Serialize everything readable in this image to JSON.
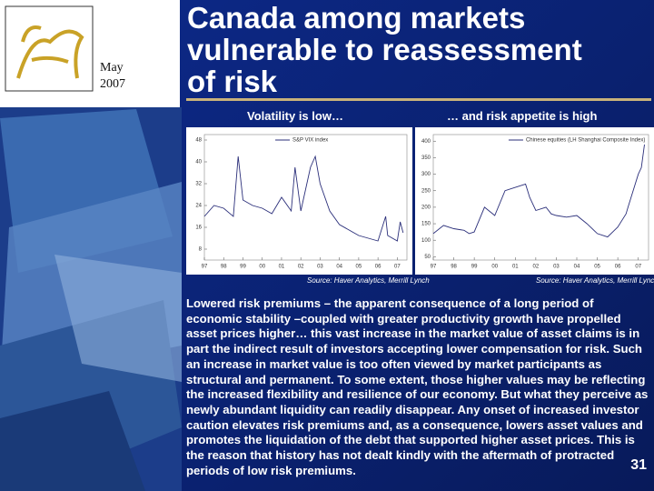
{
  "header": {
    "month": "May",
    "year": "2007",
    "title_lines": [
      "Canada among markets",
      "vulnerable to reassessment",
      "of risk"
    ]
  },
  "panels": [
    {
      "subtitle": "Volatility is low…",
      "source": "Source: Haver Analytics, Merrill Lynch"
    },
    {
      "subtitle": "… and risk appetite is high",
      "source": "Source: Haver Analytics, Merrill Lynch"
    }
  ],
  "chart_data": [
    {
      "type": "line",
      "x": [
        1997,
        1997.5,
        1998,
        1998.5,
        1998.75,
        1999,
        1999.5,
        2000,
        2000.5,
        2001,
        2001.5,
        2001.7,
        2002,
        2002.5,
        2002.75,
        2003,
        2003.5,
        2004,
        2004.5,
        2005,
        2005.5,
        2006,
        2006.4,
        2006.5,
        2007,
        2007.15,
        2007.3
      ],
      "series": [
        {
          "name": "S&P VIX index",
          "color": "#2b2f7a",
          "values": [
            20,
            24,
            23,
            20,
            42,
            26,
            24,
            23,
            21,
            27,
            22,
            38,
            22,
            38,
            42,
            32,
            22,
            17,
            15,
            13,
            12,
            11,
            20,
            13,
            11,
            18,
            14
          ]
        }
      ],
      "xlim": [
        1997,
        2007.5
      ],
      "ylim": [
        4,
        50
      ],
      "xticks": [
        {
          "value": 1997,
          "label": "97"
        },
        {
          "value": 1998,
          "label": "98"
        },
        {
          "value": 1999,
          "label": "99"
        },
        {
          "value": 2000,
          "label": "00"
        },
        {
          "value": 2001,
          "label": "01"
        },
        {
          "value": 2002,
          "label": "02"
        },
        {
          "value": 2003,
          "label": "03"
        },
        {
          "value": 2004,
          "label": "04"
        },
        {
          "value": 2005,
          "label": "05"
        },
        {
          "value": 2006,
          "label": "06"
        },
        {
          "value": 2007,
          "label": "07"
        }
      ],
      "yticks": [
        8,
        16,
        24,
        32,
        40,
        48
      ]
    },
    {
      "type": "line",
      "x": [
        1997,
        1997.5,
        1998,
        1998.5,
        1998.75,
        1999,
        1999.5,
        2000,
        2000.5,
        2001,
        2001.5,
        2001.7,
        2002,
        2002.5,
        2002.75,
        2003,
        2003.5,
        2004,
        2004.5,
        2005,
        2005.5,
        2006,
        2006.4,
        2006.5,
        2007,
        2007.15,
        2007.3
      ],
      "series": [
        {
          "name": "Chinese equities (LH Shanghai Composite Index)",
          "color": "#2b2f7a",
          "values": [
            120,
            145,
            135,
            130,
            120,
            125,
            200,
            175,
            250,
            260,
            270,
            230,
            190,
            200,
            180,
            175,
            170,
            175,
            150,
            120,
            110,
            140,
            180,
            200,
            300,
            320,
            390
          ]
        }
      ],
      "xlim": [
        1997,
        2007.5
      ],
      "ylim": [
        40,
        420
      ],
      "xticks": [
        {
          "value": 1997,
          "label": "97"
        },
        {
          "value": 1998,
          "label": "98"
        },
        {
          "value": 1999,
          "label": "99"
        },
        {
          "value": 2000,
          "label": "00"
        },
        {
          "value": 2001,
          "label": "01"
        },
        {
          "value": 2002,
          "label": "02"
        },
        {
          "value": 2003,
          "label": "03"
        },
        {
          "value": 2004,
          "label": "04"
        },
        {
          "value": 2005,
          "label": "05"
        },
        {
          "value": 2006,
          "label": "06"
        },
        {
          "value": 2007,
          "label": "07"
        }
      ],
      "yticks": [
        50,
        100,
        150,
        200,
        250,
        300,
        350,
        400
      ]
    }
  ],
  "body": "Lowered risk premiums – the apparent consequence of a long period of economic stability –coupled with greater productivity growth have propelled asset prices higher… this vast increase in the market value of asset claims is in part the indirect result of investors accepting lower compensation for risk. Such an increase in market value is too often viewed by market participants as structural and permanent. To some extent, those higher values may be reflecting the increased flexibility and resilience of our economy. But what they perceive as newly abundant liquidity can readily disappear. Any onset of increased investor caution elevates risk premiums and, as a consequence, lowers asset values and promotes the liquidation of the debt that supported higher asset prices. This is the reason that history has not dealt kindly with the aftermath of protracted periods of low risk premiums.",
  "page_number": "31"
}
